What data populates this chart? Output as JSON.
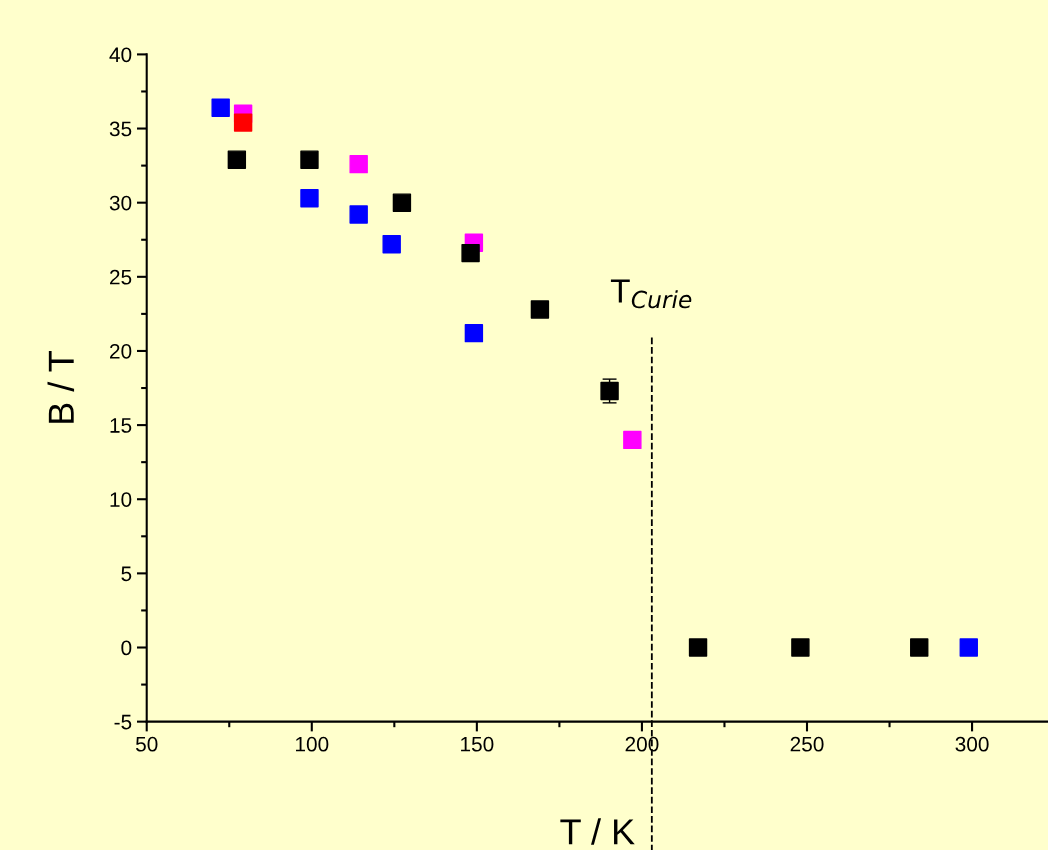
{
  "chart_data": {
    "type": "scatter",
    "xlabel": "T / K",
    "ylabel": "B / T",
    "xlim": [
      50,
      323
    ],
    "xticks": [
      50,
      100,
      150,
      200,
      250,
      300
    ],
    "ylim": [
      -5,
      40
    ],
    "yticks": [
      -5,
      0,
      5,
      10,
      15,
      20,
      25,
      30,
      35,
      40
    ],
    "marker": "square",
    "grid": false,
    "legend": false,
    "series": [
      {
        "color": "#0000ff",
        "x": [
          72.4,
          99.3,
          114.2,
          124.2,
          149.1,
          299
        ],
        "values": [
          36.4,
          30.3,
          29.2,
          27.2,
          21.2,
          0
        ]
      },
      {
        "color": "#ff00ff",
        "x": [
          79.2,
          114.2,
          149.1,
          197.1
        ],
        "values": [
          36.0,
          32.6,
          27.3,
          14.0
        ]
      },
      {
        "color": "#ff0000",
        "x": [
          79.2
        ],
        "values": [
          35.4
        ]
      },
      {
        "color": "#000000",
        "x": [
          77.3,
          99.3,
          127.3,
          148.1,
          169.1,
          190.2,
          217,
          248,
          284
        ],
        "values": [
          32.9,
          32.9,
          30.0,
          26.6,
          22.8,
          17.3,
          0,
          0,
          0
        ],
        "errors": [
          null,
          null,
          null,
          null,
          null,
          0.8,
          null,
          null,
          null
        ]
      }
    ],
    "ref_lines": [
      {
        "axis": "x",
        "value": 203,
        "label": "T$_{Curie}$",
        "color": "#000000",
        "line_style": "dashed"
      }
    ]
  }
}
